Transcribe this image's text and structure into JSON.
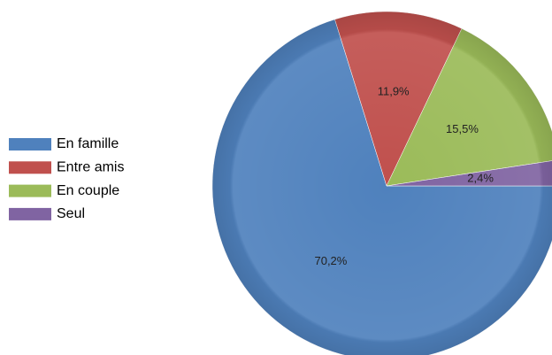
{
  "chart_data": {
    "type": "pie",
    "categories": [
      "En famille",
      "Entre amis",
      "En couple",
      "Seul"
    ],
    "values": [
      70.2,
      11.9,
      15.5,
      2.4
    ],
    "value_labels": [
      "70,2%",
      "11,9%",
      "15,5%",
      "2,4%"
    ],
    "colors": [
      "#4f81bd",
      "#c0504d",
      "#9bbb59",
      "#8064a2"
    ],
    "legend": "left"
  }
}
